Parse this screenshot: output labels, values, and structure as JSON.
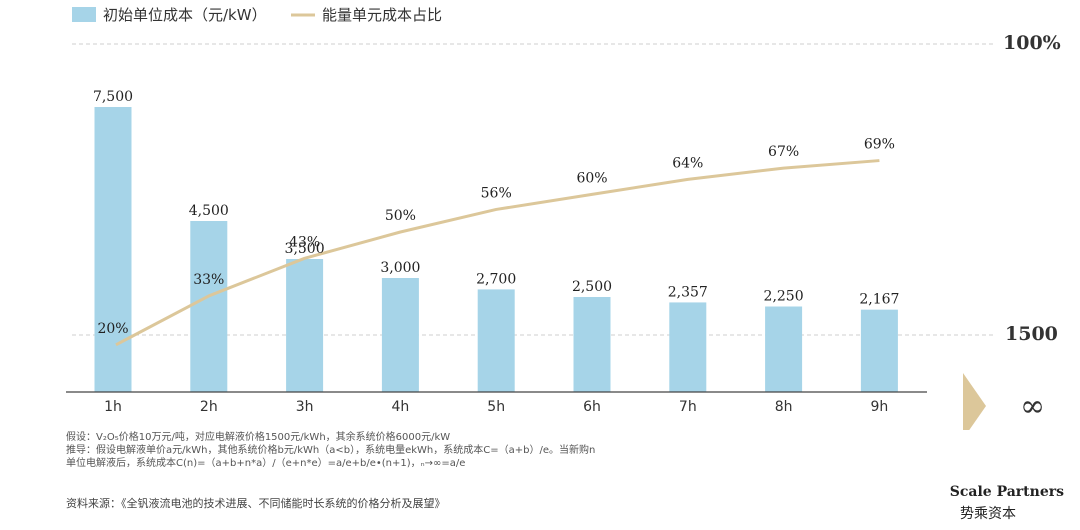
{
  "chart_data": {
    "type": "bar",
    "categories": [
      "1h",
      "2h",
      "3h",
      "4h",
      "5h",
      "6h",
      "7h",
      "8h",
      "9h"
    ],
    "series": [
      {
        "name": "初始单位成本（元/kW）",
        "type": "bar",
        "color": "#A6D4E8",
        "values": [
          7500,
          4500,
          3500,
          3000,
          2700,
          2500,
          2357,
          2250,
          2167
        ],
        "labels": [
          "7,500",
          "4,500",
          "3,500",
          "3,000",
          "2,700",
          "2,500",
          "2,357",
          "2,250",
          "2,167"
        ]
      },
      {
        "name": "能量单元成本占比",
        "type": "line",
        "color": "#DCC79A",
        "values": [
          20,
          33,
          43,
          50,
          56,
          60,
          64,
          67,
          69
        ],
        "labels": [
          "20%",
          "33%",
          "43%",
          "50%",
          "56%",
          "60%",
          "64%",
          "67%",
          "69%"
        ]
      }
    ],
    "reference_lines": {
      "top_label": "100%",
      "bottom_label": "1500",
      "bottom_value": 1500
    },
    "infinity_label": "∞",
    "grid": false,
    "legend": "top-left"
  },
  "notes": [
    "假设：V₂O₅价格10万元/吨，对应电解液价格1500元/kWh，其余系统价格6000元/kW",
    "推导：假设电解液单价a元/kWh，其他系统价格b元/kWh（a<b），系统电量ekWh，系统成本C=（a+b）/e。当新购n",
    "单位电解液后，系统成本C(n)=（a+b+n*a）/（e+n*e）=a/e+b/e•(n+1)，ₙ→∞=a/e"
  ],
  "source": "资料来源：《全钒液流电池的技术进展、不同储能时长系统的价格分析及展望》",
  "brand": {
    "name_en": "Scale Partners",
    "name_cn": "势乘资本"
  }
}
